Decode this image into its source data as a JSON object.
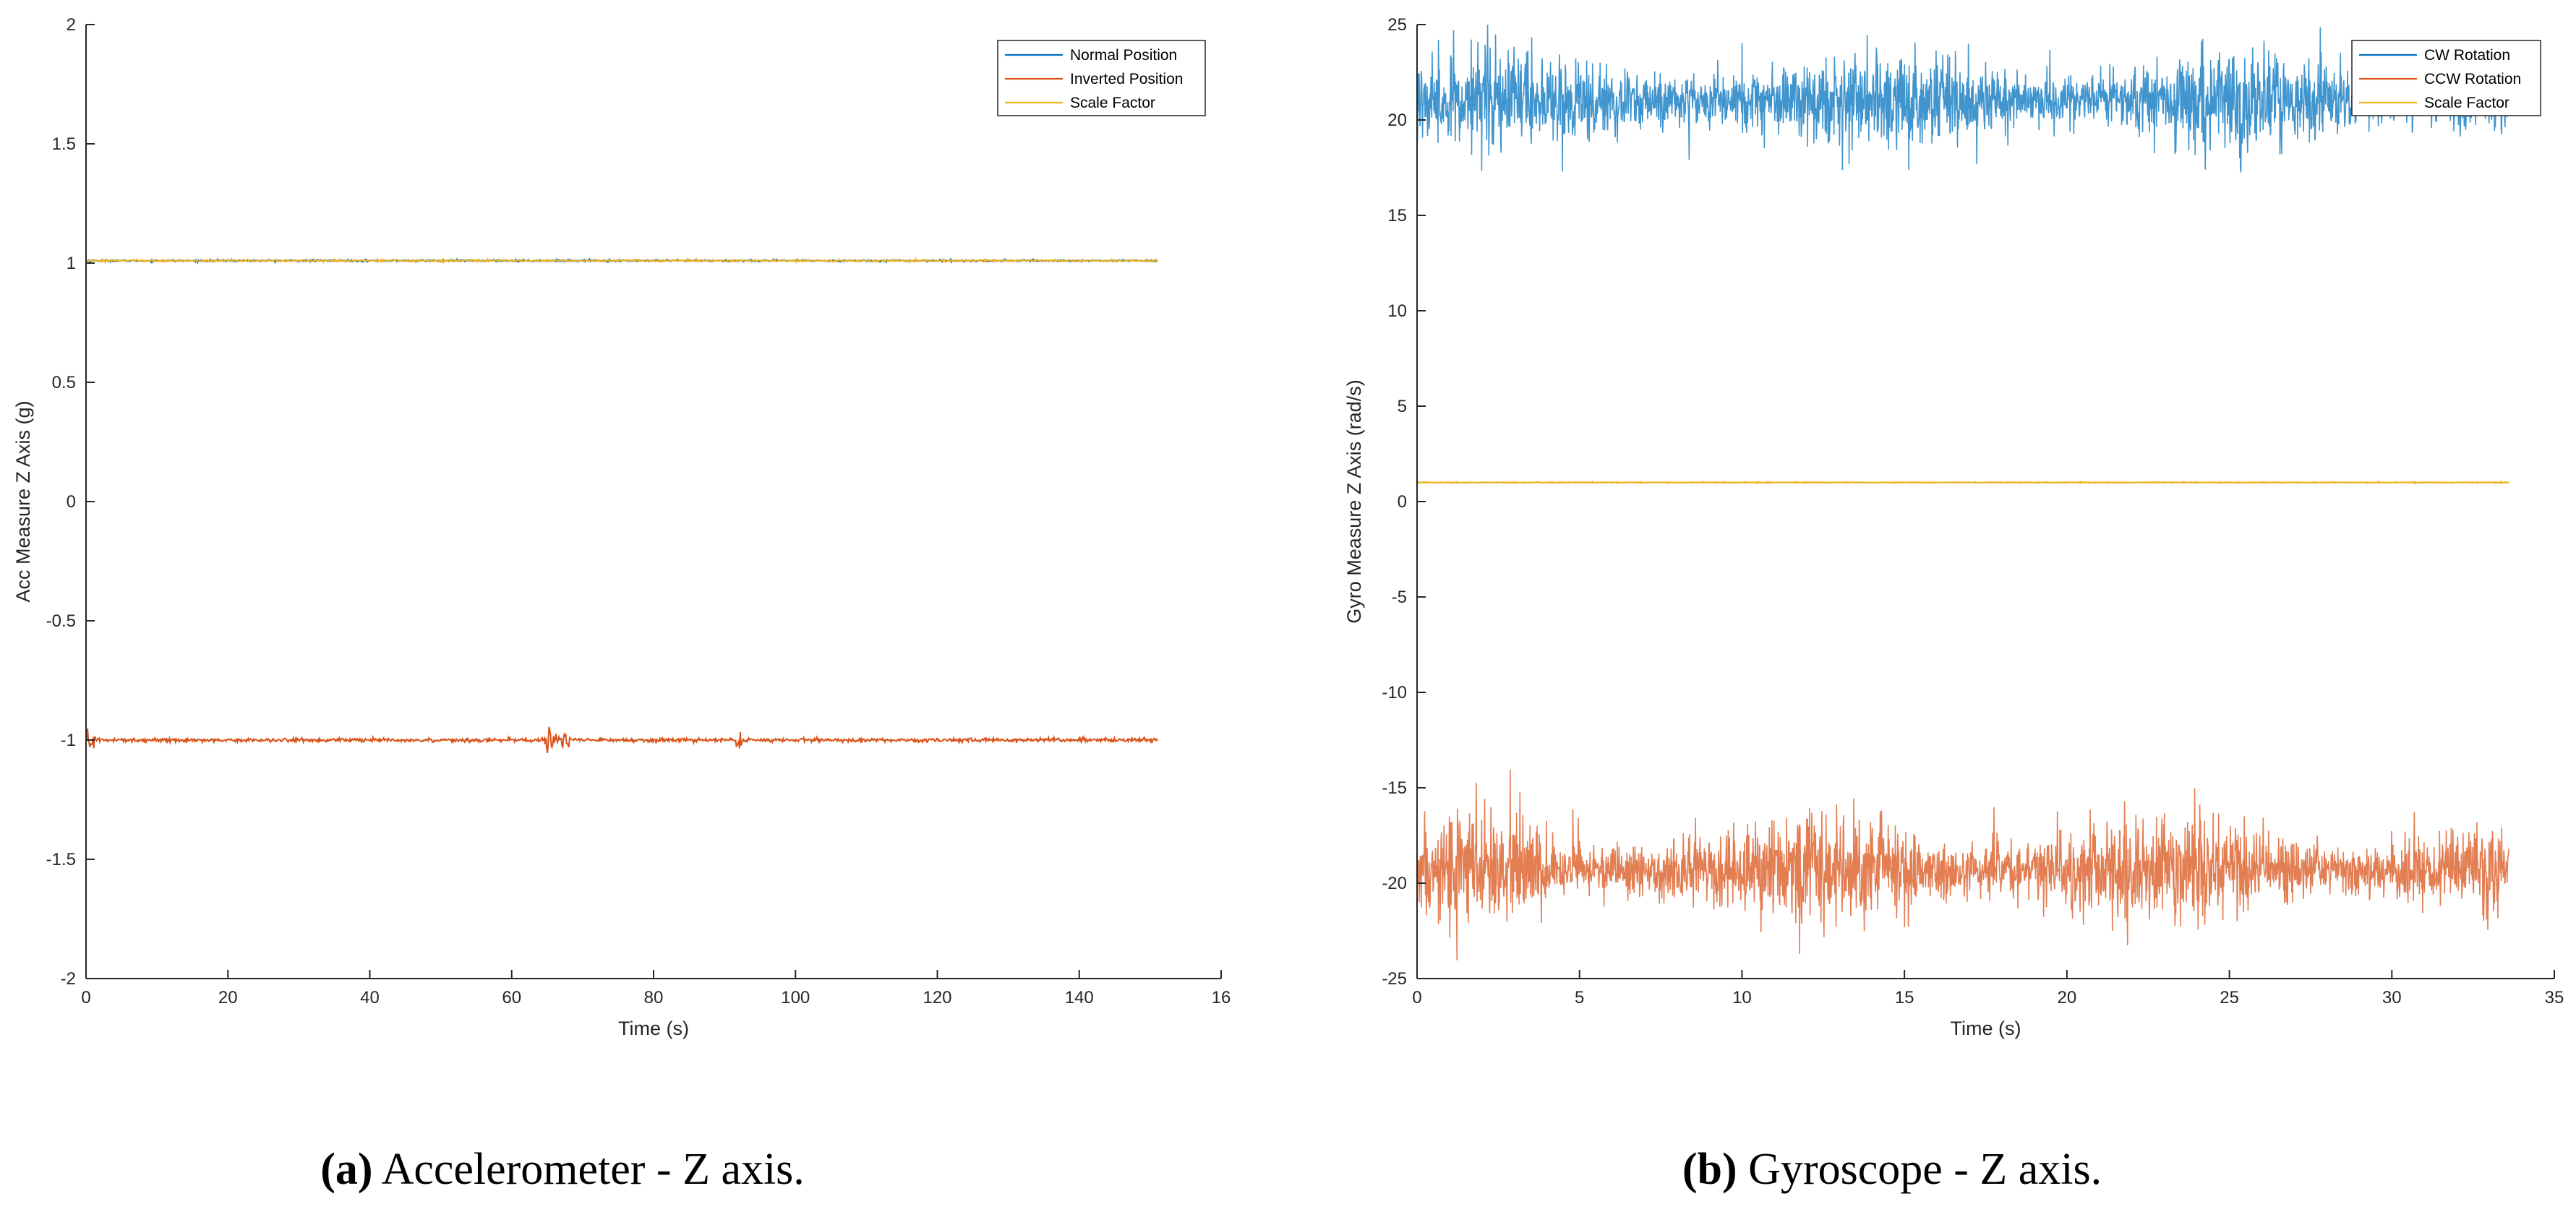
{
  "chart_data": [
    {
      "type": "line",
      "panel": "a",
      "xlabel": "Time (s)",
      "ylabel": "Acc Measure Z Axis (g)",
      "xlim": [
        0,
        16
      ],
      "ylim": [
        -2,
        2
      ],
      "xticks": [
        "0",
        "20",
        "40",
        "60",
        "80",
        "100",
        "120",
        "140",
        "16"
      ],
      "yticks": [
        "2",
        "1.5",
        "1",
        "0.5",
        "0",
        "-0.5",
        "-1",
        "-1.5",
        "-2"
      ],
      "x_range": [
        0,
        15.1
      ],
      "grid": false,
      "legend_position": "top-right",
      "series": [
        {
          "name": "Normal Position",
          "color": "#0072BD",
          "mean": 1.01,
          "noise": 0.002
        },
        {
          "name": "Inverted Position",
          "color": "#D95319",
          "mean": -1.0,
          "noise": 0.004
        },
        {
          "name": "Scale Factor",
          "color": "#EDB120",
          "mean": 1.01,
          "noise": 0.002
        }
      ],
      "caption_label": "(a)",
      "caption_text": " Accelerometer - Z axis."
    },
    {
      "type": "line",
      "panel": "b",
      "xlabel": "Time (s)",
      "ylabel": "Gyro Measure Z Axis (rad/s)",
      "xlim": [
        0,
        35
      ],
      "ylim": [
        -25,
        25
      ],
      "xticks": [
        "0",
        "5",
        "10",
        "15",
        "20",
        "25",
        "30",
        "35"
      ],
      "yticks": [
        "25",
        "20",
        "15",
        "10",
        "5",
        "0",
        "-5",
        "-10",
        "-15",
        "-20",
        "-25"
      ],
      "x_range": [
        0,
        33.6
      ],
      "grid": false,
      "legend_position": "top-right",
      "series": [
        {
          "name": "CW Rotation",
          "color": "#0072BD",
          "mean": 21.0,
          "noise": 0.9
        },
        {
          "name": "CCW Rotation",
          "color": "#D95319",
          "mean": -19.3,
          "noise": 1.0
        },
        {
          "name": "Scale Factor",
          "color": "#EDB120",
          "mean": 1.0,
          "noise": 0.01
        }
      ],
      "caption_label": "(b)",
      "caption_text": " Gyroscope - Z axis."
    }
  ]
}
